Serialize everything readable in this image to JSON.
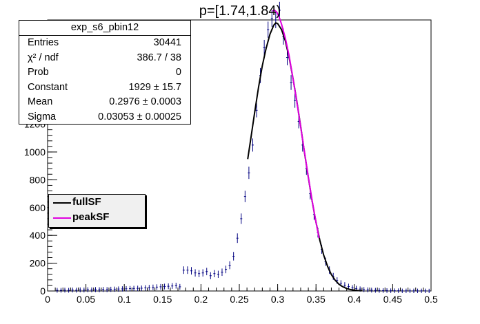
{
  "title": "p=[1.74,1.84)",
  "stats": {
    "name": "exp_s6_pbin12",
    "rows": [
      {
        "key": "Entries",
        "value": "30441"
      },
      {
        "key": "χ² / ndf",
        "value": "386.7 / 38"
      },
      {
        "key": "Prob",
        "value": "0"
      },
      {
        "key": "Constant",
        "value": "1929 ± 15.7"
      },
      {
        "key": "Mean",
        "value": "0.2976 ± 0.0003"
      },
      {
        "key": "Sigma",
        "value": "0.03053 ± 0.00025"
      }
    ]
  },
  "legend": [
    {
      "label": "fullSF",
      "color": "#000000"
    },
    {
      "label": "peakSF",
      "color": "#e000e0"
    }
  ],
  "chart_data": {
    "type": "scatter",
    "title": "p=[1.74,1.84)",
    "xlabel": "",
    "ylabel": "",
    "xlim": [
      0,
      0.5
    ],
    "ylim": [
      0,
      1950
    ],
    "xticks": [
      "0",
      "0.05",
      "0.1",
      "0.15",
      "0.2",
      "0.25",
      "0.3",
      "0.35",
      "0.4",
      "0.45",
      "0.5"
    ],
    "yticks": [
      "0",
      "200",
      "400",
      "600",
      "800",
      "1000",
      "1200",
      "1400"
    ],
    "ytick_values": [
      0,
      200,
      400,
      600,
      800,
      1000,
      1200,
      1400
    ],
    "grid": false,
    "legend_position": "middle-left",
    "points": {
      "x": [
        0.0125,
        0.0175,
        0.0225,
        0.0275,
        0.0325,
        0.0375,
        0.0425,
        0.0475,
        0.0525,
        0.0575,
        0.0625,
        0.0675,
        0.0725,
        0.0775,
        0.0825,
        0.0875,
        0.0925,
        0.0975,
        0.1025,
        0.1075,
        0.1125,
        0.1175,
        0.1225,
        0.1275,
        0.1325,
        0.1375,
        0.1425,
        0.1475,
        0.1525,
        0.1575,
        0.1625,
        0.1675,
        0.1725,
        0.1775,
        0.1825,
        0.1875,
        0.1925,
        0.1975,
        0.2025,
        0.2075,
        0.2125,
        0.2175,
        0.2225,
        0.2275,
        0.2325,
        0.2375,
        0.2425,
        0.2475,
        0.2525,
        0.2575,
        0.2625,
        0.2675,
        0.2725,
        0.2775,
        0.2825,
        0.2875,
        0.2925,
        0.2975,
        0.3025,
        0.3075,
        0.3125,
        0.3175,
        0.3225,
        0.3275,
        0.3325,
        0.3375,
        0.3425,
        0.3475,
        0.3525,
        0.3575,
        0.3625,
        0.3675,
        0.3725,
        0.3775,
        0.3825,
        0.3875,
        0.3925,
        0.3975,
        0.4025,
        0.4075,
        0.4125,
        0.4175,
        0.4225,
        0.4275,
        0.4325,
        0.4375,
        0.4425,
        0.4475,
        0.4525,
        0.4575,
        0.4625,
        0.4675,
        0.4725,
        0.4775,
        0.4825,
        0.4875,
        0.4925,
        0.4975
      ],
      "y": [
        5,
        5,
        6,
        5,
        7,
        6,
        8,
        7,
        9,
        8,
        10,
        9,
        11,
        10,
        12,
        13,
        14,
        15,
        16,
        17,
        18,
        19,
        20,
        22,
        24,
        26,
        28,
        30,
        32,
        34,
        36,
        38,
        30,
        150,
        150,
        145,
        130,
        125,
        130,
        140,
        110,
        125,
        120,
        135,
        155,
        185,
        250,
        380,
        520,
        680,
        850,
        1050,
        1300,
        1550,
        1750,
        1880,
        1960,
        1950,
        2020,
        1830,
        1680,
        1500,
        1370,
        1220,
        1050,
        880,
        700,
        550,
        420,
        300,
        210,
        150,
        105,
        75,
        55,
        42,
        32,
        22,
        18,
        14,
        10,
        8,
        6,
        5,
        4,
        3,
        3,
        2,
        2,
        2,
        1,
        1,
        1,
        1,
        1,
        1,
        1,
        0
      ]
    },
    "series": [
      {
        "name": "fullSF",
        "color": "#000000",
        "x": [
          0.261,
          0.265,
          0.27,
          0.275,
          0.28,
          0.285,
          0.29,
          0.295,
          0.2976,
          0.3,
          0.305,
          0.31,
          0.315,
          0.32,
          0.325,
          0.33,
          0.335,
          0.34,
          0.345,
          0.35,
          0.355,
          0.36,
          0.365,
          0.37,
          0.375,
          0.38,
          0.385,
          0.39,
          0.395,
          0.4,
          0.405,
          0.41
        ],
        "y": [
          949,
          1097,
          1283,
          1463,
          1622,
          1746,
          1848,
          1913,
          1929,
          1924,
          1881,
          1800,
          1678,
          1531,
          1365,
          1184,
          996,
          816,
          646,
          495,
          364,
          259,
          178,
          119,
          77,
          48,
          30,
          18,
          10,
          6,
          3,
          2
        ]
      },
      {
        "name": "peakSF",
        "color": "#e000e0",
        "x": [
          0.293,
          0.296,
          0.299,
          0.302,
          0.305,
          0.31,
          0.315,
          0.32,
          0.325,
          0.33,
          0.335,
          0.34,
          0.345,
          0.35,
          0.354
        ],
        "y": [
          2015,
          2020,
          2005,
          1970,
          1920,
          1820,
          1690,
          1530,
          1360,
          1180,
          1000,
          820,
          650,
          495,
          380
        ]
      }
    ]
  }
}
